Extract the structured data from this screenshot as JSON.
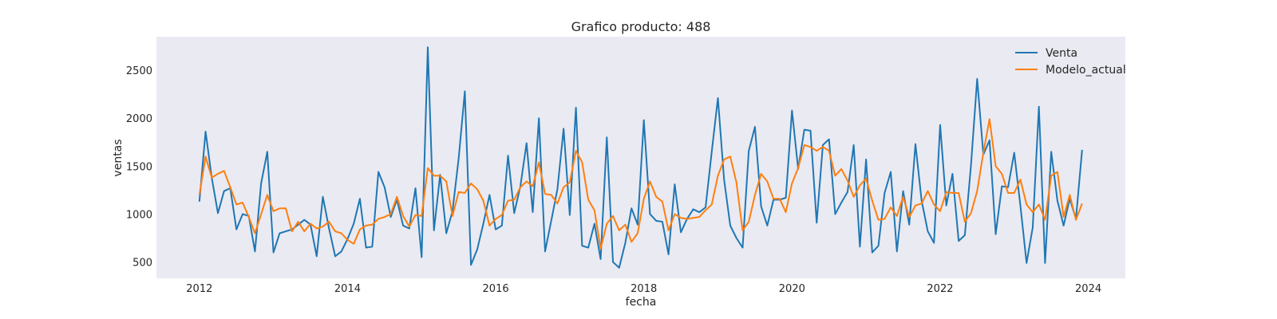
{
  "chart_data": {
    "type": "line",
    "title": "Grafico producto: 488",
    "xlabel": "fecha",
    "ylabel": "ventas",
    "xlim": [
      2011.42,
      2024.5
    ],
    "ylim": [
      330,
      2850
    ],
    "grid": false,
    "background": "#eaeaf2",
    "legend_position": "top-right",
    "xticks": [
      2012,
      2014,
      2016,
      2018,
      2020,
      2022,
      2024
    ],
    "xtick_labels": [
      "2012",
      "2014",
      "2016",
      "2018",
      "2020",
      "2022",
      "2024"
    ],
    "yticks": [
      500,
      1000,
      1500,
      2000,
      2500
    ],
    "ytick_labels": [
      "500",
      "1000",
      "1500",
      "2000",
      "2500"
    ],
    "x_start": 2012.0,
    "x_step": 0.08333,
    "series": [
      {
        "name": "Venta",
        "color": "#1f77b4",
        "values": [
          1130,
          1860,
          1380,
          1010,
          1240,
          1270,
          840,
          1000,
          980,
          610,
          1320,
          1650,
          600,
          800,
          820,
          840,
          890,
          940,
          890,
          560,
          1180,
          850,
          560,
          610,
          740,
          900,
          1160,
          650,
          660,
          1440,
          1280,
          970,
          1150,
          880,
          850,
          1270,
          550,
          2740,
          830,
          1410,
          800,
          1030,
          1580,
          2280,
          470,
          630,
          900,
          1200,
          840,
          880,
          1610,
          1010,
          1290,
          1740,
          1020,
          2000,
          610,
          930,
          1260,
          1890,
          990,
          2110,
          670,
          650,
          900,
          530,
          1800,
          500,
          440,
          700,
          1060,
          890,
          1980,
          1000,
          930,
          920,
          580,
          1310,
          810,
          950,
          1050,
          1020,
          1070,
          1650,
          2210,
          1360,
          880,
          750,
          650,
          1660,
          1910,
          1080,
          880,
          1150,
          1150,
          1170,
          2080,
          1470,
          1880,
          1870,
          910,
          1720,
          1780,
          1000,
          1120,
          1230,
          1720,
          660,
          1570,
          600,
          670,
          1220,
          1440,
          610,
          1240,
          890,
          1730,
          1140,
          820,
          700,
          1930,
          1090,
          1420,
          720,
          780,
          1510,
          2410,
          1620,
          1770,
          790,
          1290,
          1280,
          1640,
          1090,
          490,
          860,
          2120,
          490,
          1650,
          1140,
          880,
          1160,
          950,
          1670
        ]
      },
      {
        "name": "Modelo_actual",
        "color": "#ff7f0e",
        "values": [
          1200,
          1600,
          1380,
          1420,
          1450,
          1280,
          1100,
          1120,
          970,
          800,
          1000,
          1200,
          1030,
          1060,
          1060,
          820,
          920,
          820,
          900,
          850,
          870,
          920,
          820,
          800,
          730,
          690,
          840,
          880,
          890,
          950,
          970,
          1000,
          1180,
          980,
          870,
          990,
          980,
          1480,
          1400,
          1400,
          1340,
          980,
          1230,
          1220,
          1320,
          1260,
          1140,
          880,
          950,
          990,
          1140,
          1150,
          1280,
          1340,
          1290,
          1540,
          1210,
          1200,
          1110,
          1280,
          1330,
          1660,
          1540,
          1150,
          1040,
          640,
          900,
          980,
          830,
          890,
          710,
          800,
          1160,
          1340,
          1180,
          1130,
          830,
          1000,
          960,
          950,
          960,
          970,
          1040,
          1100,
          1400,
          1570,
          1600,
          1330,
          830,
          920,
          1200,
          1420,
          1340,
          1160,
          1160,
          1020,
          1320,
          1480,
          1720,
          1700,
          1660,
          1700,
          1660,
          1400,
          1470,
          1350,
          1180,
          1300,
          1370,
          1140,
          940,
          950,
          1070,
          980,
          1180,
          970,
          1090,
          1110,
          1240,
          1100,
          1030,
          1230,
          1220,
          1220,
          920,
          1010,
          1240,
          1640,
          1990,
          1500,
          1420,
          1220,
          1220,
          1360,
          1100,
          1020,
          1100,
          940,
          1400,
          1440,
          970,
          1200,
          940,
          1110
        ]
      }
    ]
  }
}
